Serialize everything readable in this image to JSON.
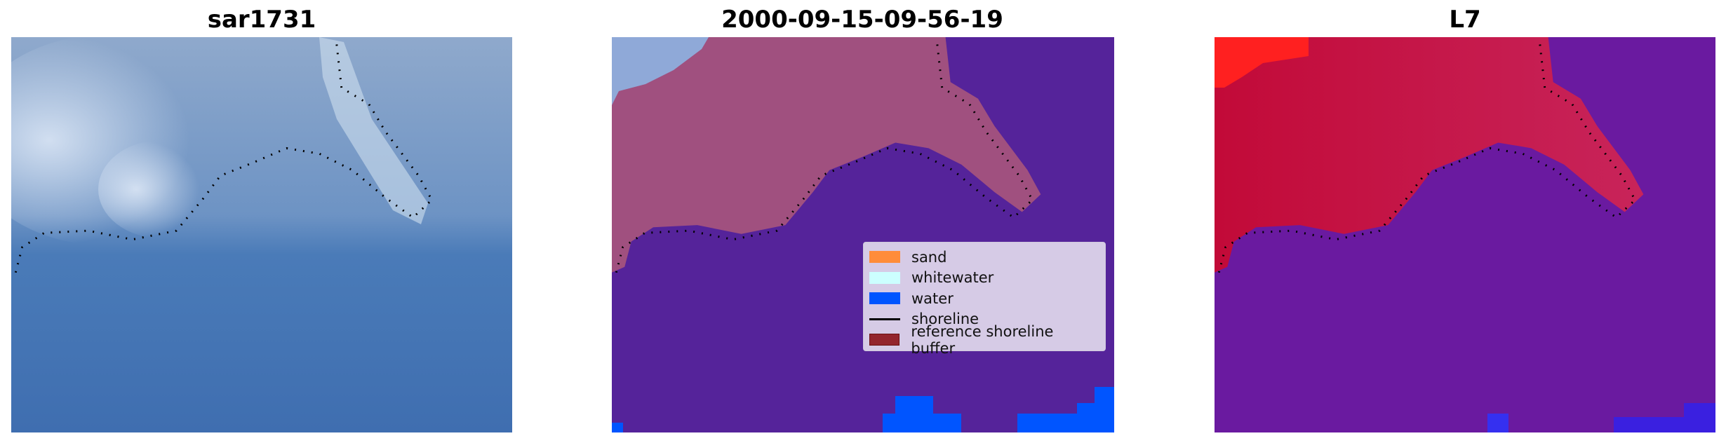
{
  "panels": [
    {
      "title": "sar1731",
      "content": "satellite RGB image"
    },
    {
      "title": "2000-09-15-09-56-19",
      "content": "classified image"
    },
    {
      "title": "L7",
      "content": "index image"
    }
  ],
  "legend": {
    "items": [
      {
        "label": "sand",
        "color": "#ff8c3a",
        "kind": "patch"
      },
      {
        "label": "whitewater",
        "color": "#ccffff",
        "kind": "patch"
      },
      {
        "label": "water",
        "color": "#0055ff",
        "kind": "patch"
      },
      {
        "label": "shoreline",
        "color": "#000000",
        "kind": "line"
      },
      {
        "label": "reference shoreline buffer",
        "color": "#93252d",
        "kind": "patch"
      }
    ]
  },
  "colors": {
    "water_classified": "#55239a",
    "buffer_overlay": "#a0507f",
    "index_high": "#c0103c",
    "index_low": "#6a1aa0"
  }
}
